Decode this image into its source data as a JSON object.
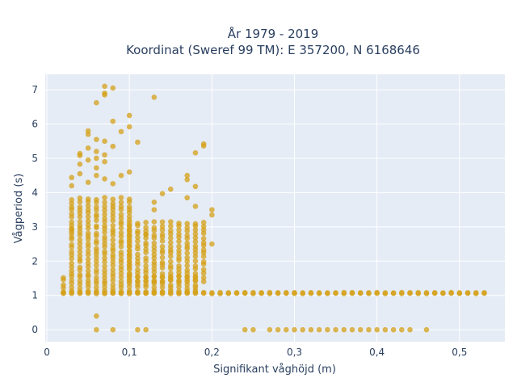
{
  "chart_data": {
    "type": "scatter",
    "title_line1": "År 1979 - 2019",
    "title_line2": "Koordinat (Sweref 99 TM): E 357200, N 6168646",
    "xlabel": "Signifikant våghöjd (m)",
    "ylabel": "Vågperiod (s)",
    "xlim": [
      -0.002,
      0.555
    ],
    "ylim": [
      -0.35,
      7.45
    ],
    "x_ticks": [
      0,
      0.1,
      0.2,
      0.3,
      0.4,
      0.5
    ],
    "x_tick_labels": [
      "0",
      "0,1",
      "0,2",
      "0,3",
      "0,4",
      "0,5"
    ],
    "y_ticks": [
      0,
      1,
      2,
      3,
      4,
      5,
      6,
      7
    ],
    "y_tick_labels": [
      "0",
      "1",
      "2",
      "3",
      "4",
      "5",
      "6",
      "7"
    ],
    "grid": true,
    "colors": {
      "marker": "#d4a017",
      "plot_bg": "#e5ecf6",
      "grid": "#ffffff"
    },
    "bands": [
      {
        "x0": 0.02,
        "x1": 0.53,
        "step": 0.01,
        "ymin": 1.05,
        "ymax": 1.1
      },
      {
        "x0": 0.02,
        "x1": 0.18,
        "step": 0.01,
        "ymin": 1.1,
        "ymax": 1.6
      },
      {
        "x0": 0.03,
        "x1": 0.1,
        "step": 0.01,
        "ymin": 1.6,
        "ymax": 3.9
      },
      {
        "x0": 0.1,
        "x1": 0.19,
        "step": 0.01,
        "ymin": 1.4,
        "ymax": 3.2
      }
    ],
    "zero_row": {
      "x": [
        0.06,
        0.08,
        0.11,
        0.12,
        0.24,
        0.25,
        0.27,
        0.28,
        0.29,
        0.3,
        0.31,
        0.32,
        0.33,
        0.34,
        0.35,
        0.36,
        0.37,
        0.38,
        0.39,
        0.4,
        0.41,
        0.42,
        0.43,
        0.44,
        0.46
      ],
      "y": 0
    },
    "points": [
      {
        "x": 0.07,
        "y": 7.1
      },
      {
        "x": 0.08,
        "y": 7.05
      },
      {
        "x": 0.07,
        "y": 6.9
      },
      {
        "x": 0.07,
        "y": 6.85
      },
      {
        "x": 0.13,
        "y": 6.78
      },
      {
        "x": 0.06,
        "y": 6.62
      },
      {
        "x": 0.1,
        "y": 6.25
      },
      {
        "x": 0.08,
        "y": 6.08
      },
      {
        "x": 0.1,
        "y": 5.92
      },
      {
        "x": 0.09,
        "y": 5.78
      },
      {
        "x": 0.05,
        "y": 5.8
      },
      {
        "x": 0.05,
        "y": 5.7
      },
      {
        "x": 0.06,
        "y": 5.55
      },
      {
        "x": 0.07,
        "y": 5.5
      },
      {
        "x": 0.11,
        "y": 5.47
      },
      {
        "x": 0.19,
        "y": 5.42
      },
      {
        "x": 0.19,
        "y": 5.36
      },
      {
        "x": 0.08,
        "y": 5.35
      },
      {
        "x": 0.05,
        "y": 5.3
      },
      {
        "x": 0.06,
        "y": 5.2
      },
      {
        "x": 0.18,
        "y": 5.16
      },
      {
        "x": 0.04,
        "y": 5.14
      },
      {
        "x": 0.04,
        "y": 5.08
      },
      {
        "x": 0.07,
        "y": 5.1
      },
      {
        "x": 0.06,
        "y": 5.0
      },
      {
        "x": 0.05,
        "y": 4.95
      },
      {
        "x": 0.07,
        "y": 4.9
      },
      {
        "x": 0.04,
        "y": 4.83
      },
      {
        "x": 0.06,
        "y": 4.72
      },
      {
        "x": 0.1,
        "y": 4.6
      },
      {
        "x": 0.04,
        "y": 4.55
      },
      {
        "x": 0.06,
        "y": 4.5
      },
      {
        "x": 0.09,
        "y": 4.5
      },
      {
        "x": 0.17,
        "y": 4.5
      },
      {
        "x": 0.03,
        "y": 4.44
      },
      {
        "x": 0.07,
        "y": 4.4
      },
      {
        "x": 0.17,
        "y": 4.38
      },
      {
        "x": 0.05,
        "y": 4.3
      },
      {
        "x": 0.08,
        "y": 4.26
      },
      {
        "x": 0.03,
        "y": 4.2
      },
      {
        "x": 0.18,
        "y": 4.18
      },
      {
        "x": 0.15,
        "y": 4.1
      },
      {
        "x": 0.14,
        "y": 3.97
      },
      {
        "x": 0.17,
        "y": 3.85
      },
      {
        "x": 0.13,
        "y": 3.72
      },
      {
        "x": 0.18,
        "y": 3.6
      },
      {
        "x": 0.13,
        "y": 3.5
      },
      {
        "x": 0.2,
        "y": 3.5
      },
      {
        "x": 0.2,
        "y": 3.35
      },
      {
        "x": 0.03,
        "y": 2.95
      },
      {
        "x": 0.03,
        "y": 2.8
      },
      {
        "x": 0.12,
        "y": 2.78
      },
      {
        "x": 0.2,
        "y": 2.5
      },
      {
        "x": 0.06,
        "y": 0.4
      }
    ]
  }
}
